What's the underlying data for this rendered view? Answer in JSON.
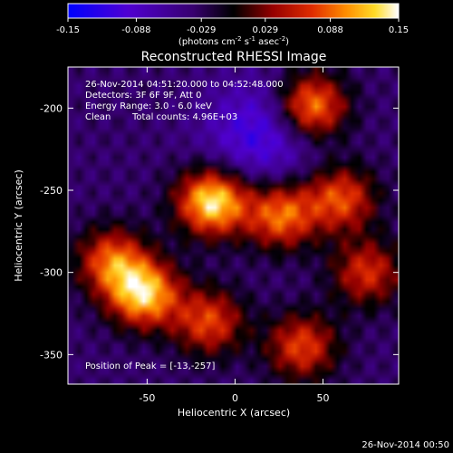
{
  "colorbar": {
    "ticks": [
      -0.15,
      -0.088,
      -0.029,
      0.029,
      0.088,
      0.15
    ],
    "tick_labels": [
      "-0.15",
      "-0.088",
      "-0.029",
      "0.029",
      "0.088",
      "0.15"
    ],
    "unit_label": "(photons cm",
    "unit_exp1": "-2",
    "unit_mid": " s",
    "unit_exp2": "-1",
    "unit_end": " asec",
    "unit_exp3": "-2",
    "unit_close": ")"
  },
  "chart_data": {
    "type": "heatmap",
    "title": "Reconstructed RHESSI Image",
    "xlabel": "Heliocentric X (arcsec)",
    "ylabel": "Heliocentric Y (arcsec)",
    "xlim": [
      -95,
      93
    ],
    "ylim": [
      -368,
      -175
    ],
    "x_ticks": [
      -50,
      0,
      50
    ],
    "x_tick_labels": [
      "-50",
      "0",
      "50"
    ],
    "y_ticks": [
      -200,
      -250,
      -300,
      -350
    ],
    "y_tick_labels": [
      "-200",
      "-250",
      "-300",
      "-350"
    ],
    "value_range": [
      -0.15,
      0.15
    ],
    "peak": [
      -13,
      -257
    ],
    "sources": [
      {
        "x": -13,
        "y": -257,
        "peak": 0.15
      },
      {
        "x": 43,
        "y": -199,
        "peak": 0.12
      },
      {
        "x": -52,
        "y": -313,
        "peak": 0.135
      },
      {
        "x": 26,
        "y": -265,
        "peak": 0.1
      },
      {
        "x": -70,
        "y": -293,
        "peak": 0.09
      },
      {
        "x": 38,
        "y": -345,
        "peak": 0.08
      },
      {
        "x": 60,
        "y": -255,
        "peak": 0.085
      },
      {
        "x": -15,
        "y": -330,
        "peak": 0.08
      },
      {
        "x": 75,
        "y": -300,
        "peak": 0.07
      }
    ],
    "negative_region": {
      "x": 15,
      "y": -215,
      "min": -0.1
    }
  },
  "annotations": {
    "line1": "26-Nov-2014 04:51:20.000 to 04:52:48.000",
    "line2": "Detectors: 3F 6F 9F, Att 0",
    "line3": "Energy Range: 3.0 - 6.0 keV",
    "line4_a": "Clean",
    "line4_b": "Total counts: 4.96E+03",
    "peak_text": "Position of Peak = [-13,-257]"
  },
  "footer": {
    "timestamp": "26-Nov-2014 00:50"
  }
}
